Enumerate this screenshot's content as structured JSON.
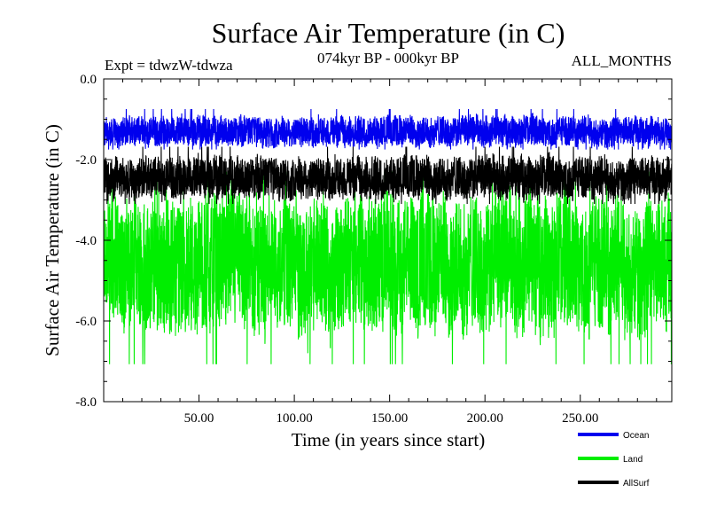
{
  "chart_data": {
    "type": "line",
    "title": "Surface Air Temperature (in C)",
    "subtitle": "074kyr BP - 000kyr BP",
    "experiment_label": "Expt = tdwzW-tdwza",
    "months_label": "ALL_MONTHS",
    "xlabel": "Time (in years since start)",
    "ylabel": "Surface Air Temperature (in C)",
    "xlim": [
      0,
      298
    ],
    "ylim": [
      -8.0,
      0.0
    ],
    "x_ticks": [
      50,
      100,
      150,
      200,
      250
    ],
    "x_tick_labels": [
      "50.00",
      "100.00",
      "150.00",
      "200.00",
      "250.00"
    ],
    "y_ticks": [
      0,
      -2,
      -4,
      -6,
      -8
    ],
    "y_tick_labels": [
      "0.0",
      "-2.0",
      "-4.0",
      "-6.0",
      "-8.0"
    ],
    "grid": false,
    "legend_position": "bottom-right",
    "samples_per_year": 12,
    "series": [
      {
        "name": "Land",
        "color": "#00ee00",
        "mean": -4.6,
        "min": -7.45,
        "max": -2.3,
        "note": "Monthly values fluctuating between about -7.45 and -2.3 C around a mean near -4.6 C"
      },
      {
        "name": "AllSurf",
        "color": "#000000",
        "mean": -2.45,
        "min": -3.1,
        "max": -1.5,
        "note": "Monthly values fluctuating between about -3.1 and -1.5 C around a mean near -2.45 C"
      },
      {
        "name": "Ocean",
        "color": "#0000ee",
        "mean": -1.3,
        "min": -1.75,
        "max": -0.6,
        "note": "Monthly values fluctuating between about -1.75 and -0.6 C around a mean near -1.3 C"
      }
    ],
    "legend": [
      {
        "name": "Ocean",
        "color": "#0000ee"
      },
      {
        "name": "Land",
        "color": "#00ee00"
      },
      {
        "name": "AllSurf",
        "color": "#000000"
      }
    ]
  }
}
